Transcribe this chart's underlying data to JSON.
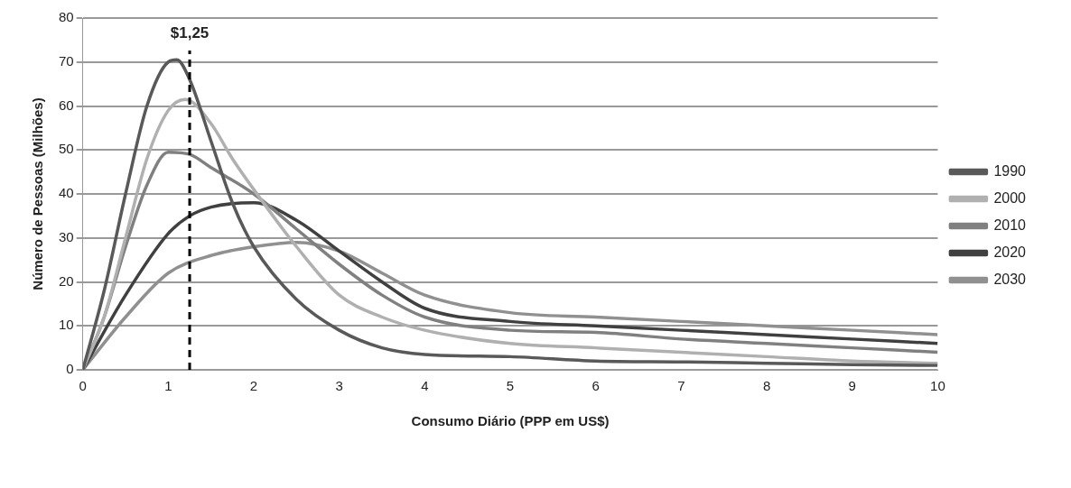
{
  "chart_data": {
    "type": "line",
    "xlabel": "Consumo Diário (PPP em US$)",
    "ylabel": "Número de Pessoas (Milhões)",
    "xlim": [
      0,
      10
    ],
    "xticks": [
      0,
      1,
      2,
      3,
      4,
      5,
      6,
      7,
      8,
      9,
      10
    ],
    "ylim": [
      0,
      80
    ],
    "yticks": [
      0,
      10,
      20,
      30,
      40,
      50,
      60,
      70,
      80
    ],
    "grid": "y",
    "legend": "right",
    "marker": "none",
    "line_style": "solid",
    "ref_lines": [
      {
        "axis": "x",
        "value": 1.25,
        "label": "$1,25",
        "color": "#000000",
        "line_style": "dashed"
      }
    ],
    "series": [
      {
        "name": "1990",
        "color": "#595959",
        "x": [
          0,
          0.25,
          0.5,
          0.75,
          1,
          1.1,
          1.25,
          1.5,
          1.75,
          2,
          2.5,
          3,
          3.5,
          4,
          5,
          6,
          7,
          8,
          9,
          10
        ],
        "values": [
          0,
          18,
          40,
          60,
          70,
          70.5,
          66,
          52,
          38,
          28,
          16,
          9,
          5,
          3.5,
          3,
          2,
          1.8,
          1.5,
          1.2,
          1
        ]
      },
      {
        "name": "2000",
        "color": "#b0b0b0",
        "x": [
          0,
          0.25,
          0.5,
          0.75,
          1,
          1.2,
          1.5,
          1.75,
          2,
          2.5,
          3,
          3.5,
          4,
          5,
          6,
          7,
          8,
          9,
          10
        ],
        "values": [
          0,
          12,
          30,
          48,
          59,
          61.5,
          56,
          48,
          41,
          28,
          17,
          12,
          9,
          6,
          5,
          4,
          3,
          2,
          1.5
        ]
      },
      {
        "name": "2010",
        "color": "#808080",
        "x": [
          0,
          0.25,
          0.5,
          0.75,
          1,
          1.25,
          1.5,
          2,
          2.5,
          3,
          3.5,
          4,
          5,
          6,
          7,
          8,
          9,
          10
        ],
        "values": [
          0,
          12,
          28,
          42,
          49.5,
          49,
          46,
          40,
          32,
          24,
          17,
          12,
          9,
          8.5,
          7,
          6,
          5,
          4
        ]
      },
      {
        "name": "2020",
        "color": "#404040",
        "x": [
          0,
          0.5,
          1,
          1.25,
          1.5,
          2,
          2.5,
          3,
          3.5,
          4,
          5,
          6,
          7,
          8,
          9,
          10
        ],
        "values": [
          0,
          17,
          31,
          35,
          37,
          38,
          34,
          27,
          20,
          14,
          11,
          10,
          9,
          8,
          7,
          6
        ]
      },
      {
        "name": "2030",
        "color": "#909090",
        "x": [
          0,
          0.5,
          1,
          1.5,
          2,
          2.5,
          3,
          3.5,
          4,
          5,
          6,
          7,
          8,
          9,
          10
        ],
        "values": [
          0,
          12,
          22,
          26,
          28,
          29,
          27,
          22,
          17,
          13,
          12,
          11,
          10,
          9,
          8
        ]
      }
    ]
  }
}
